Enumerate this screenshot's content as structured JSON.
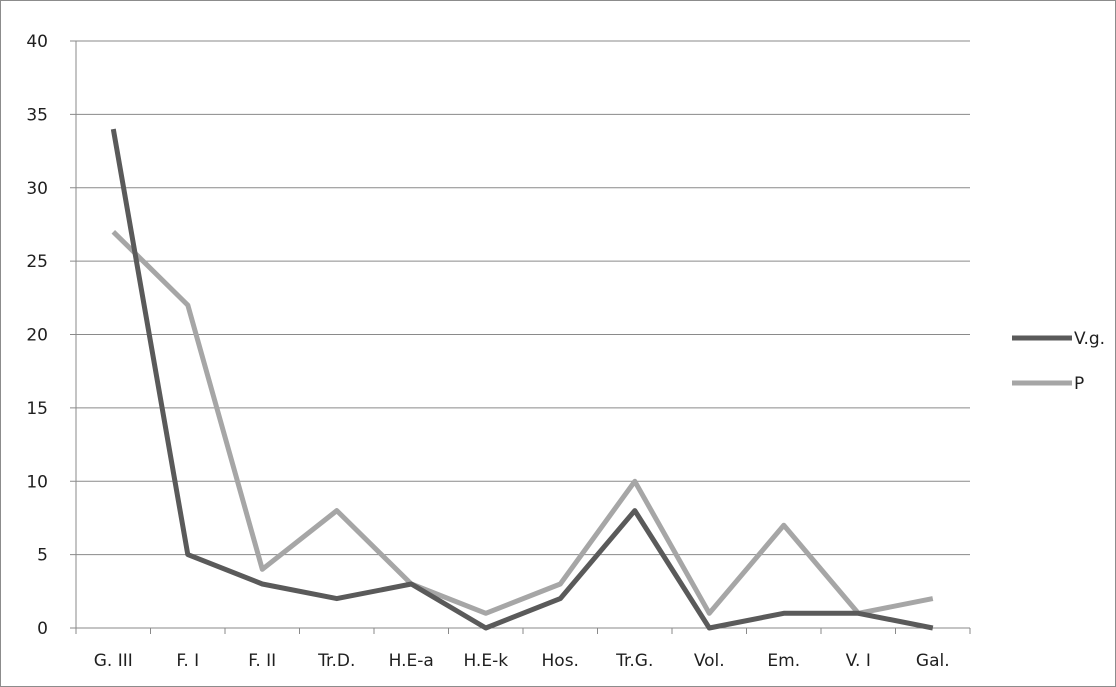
{
  "chart_data": {
    "type": "line",
    "title": "",
    "xlabel": "",
    "ylabel": "",
    "categories": [
      "G. III",
      "F. I",
      "F. II",
      "Tr.D.",
      "H.E-a",
      "H.E-k",
      "Hos.",
      "Tr.G.",
      "Vol.",
      "Em.",
      "V. I",
      "Gal."
    ],
    "ylim": [
      0,
      40
    ],
    "yticks": [
      0,
      5,
      10,
      15,
      20,
      25,
      30,
      35,
      40
    ],
    "grid": true,
    "legend_position": "right",
    "series": [
      {
        "name": "V.g.",
        "color": "#5a5a5a",
        "values": [
          34,
          5,
          3,
          2,
          3,
          0,
          2,
          8,
          0,
          1,
          1,
          0
        ]
      },
      {
        "name": "P",
        "color": "#a6a6a6",
        "values": [
          27,
          22,
          4,
          8,
          3,
          1,
          3,
          10,
          1,
          7,
          1,
          2
        ]
      }
    ]
  }
}
